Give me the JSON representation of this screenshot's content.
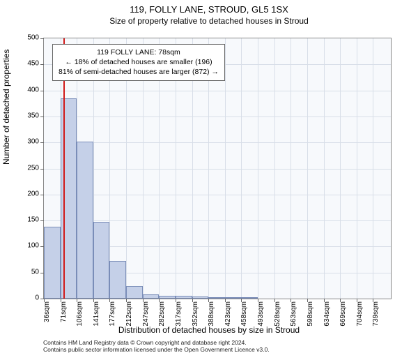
{
  "title_main": "119, FOLLY LANE, STROUD, GL5 1SX",
  "title_sub": "Size of property relative to detached houses in Stroud",
  "y_axis_label": "Number of detached properties",
  "x_axis_label": "Distribution of detached houses by size in Stroud",
  "footer_line1": "Contains HM Land Registry data © Crown copyright and database right 2024.",
  "footer_line2": "Contains public sector information licensed under the Open Government Licence v3.0.",
  "annotation": {
    "line1": "119 FOLLY LANE: 78sqm",
    "line2": "← 18% of detached houses are smaller (196)",
    "line3": "81% of semi-detached houses are larger (872) →"
  },
  "chart": {
    "type": "histogram",
    "plot_bg": "#f7f9fc",
    "page_bg": "#ffffff",
    "grid_color": "#d8dee8",
    "bar_fill": "#c5d0e8",
    "bar_stroke": "#7a8db8",
    "marker_color": "#d11919",
    "marker_x_value": 78,
    "x_min": 36,
    "x_max": 774,
    "y_min": 0,
    "y_max": 500,
    "y_ticks": [
      0,
      50,
      100,
      150,
      200,
      250,
      300,
      350,
      400,
      450,
      500
    ],
    "x_tick_spacing": 35,
    "x_tick_labels": [
      "36sqm",
      "71sqm",
      "106sqm",
      "141sqm",
      "177sqm",
      "212sqm",
      "247sqm",
      "282sqm",
      "317sqm",
      "352sqm",
      "388sqm",
      "423sqm",
      "458sqm",
      "493sqm",
      "528sqm",
      "563sqm",
      "598sqm",
      "634sqm",
      "669sqm",
      "704sqm",
      "739sqm"
    ],
    "bars": [
      [
        36,
        138
      ],
      [
        71,
        385
      ],
      [
        106,
        302
      ],
      [
        141,
        148
      ],
      [
        176,
        72
      ],
      [
        211,
        24
      ],
      [
        246,
        8
      ],
      [
        281,
        6
      ],
      [
        316,
        5
      ],
      [
        351,
        4
      ],
      [
        386,
        3
      ],
      [
        421,
        1
      ],
      [
        456,
        1
      ],
      [
        491,
        0
      ],
      [
        526,
        0
      ],
      [
        561,
        0
      ],
      [
        596,
        0
      ],
      [
        631,
        0
      ],
      [
        666,
        0
      ],
      [
        701,
        0
      ],
      [
        736,
        0
      ]
    ],
    "bar_width_units": 35
  }
}
